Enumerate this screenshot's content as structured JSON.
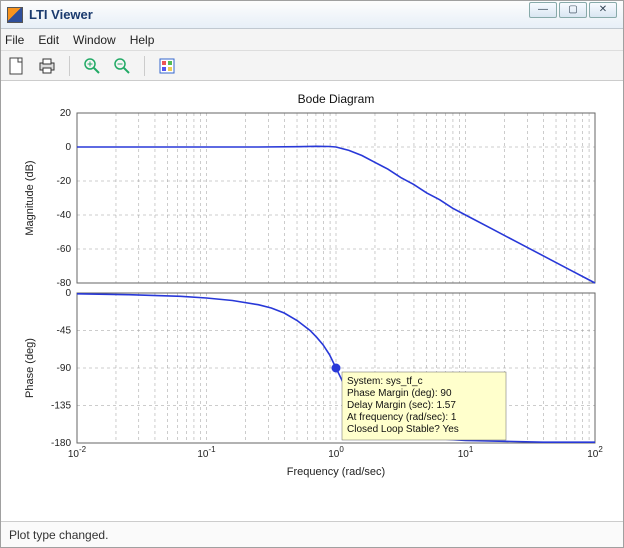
{
  "window": {
    "title": "LTI Viewer"
  },
  "menubar": {
    "items": [
      "File",
      "Edit",
      "Window",
      "Help"
    ]
  },
  "toolbar": {
    "icons": [
      {
        "name": "new-figure-icon",
        "glyph": "file"
      },
      {
        "name": "print-icon",
        "glyph": "print"
      },
      {
        "name": "zoom-in-icon",
        "glyph": "zoom-in"
      },
      {
        "name": "zoom-out-icon",
        "glyph": "zoom-out"
      },
      {
        "name": "properties-icon",
        "glyph": "props"
      }
    ]
  },
  "chart": {
    "title": "Bode Diagram",
    "xlabel": "Frequency  (rad/sec)",
    "xaxis": {
      "scale": "log",
      "lim_exp": [
        -2,
        2
      ],
      "tick_exps": [
        -2,
        -1,
        0,
        1,
        2
      ],
      "tick_labels": [
        "10^{-2}",
        "10^{-1}",
        "10^{0}",
        "10^{1}",
        "10^{2}"
      ]
    },
    "panels": {
      "mag": {
        "ylabel": "Magnitude (dB)",
        "ylim": [
          -80,
          20
        ],
        "yticks": [
          -80,
          -60,
          -40,
          -20,
          0,
          20
        ],
        "line_color": "#2838d8",
        "series_logfreq_db": [
          [
            -2.0,
            0
          ],
          [
            -1.5,
            0
          ],
          [
            -1.0,
            0
          ],
          [
            -0.6,
            0
          ],
          [
            -0.3,
            0.2
          ],
          [
            -0.15,
            0.4
          ],
          [
            -0.05,
            0.3
          ],
          [
            0.0,
            0
          ],
          [
            0.1,
            -2
          ],
          [
            0.2,
            -5
          ],
          [
            0.3,
            -9
          ],
          [
            0.4,
            -13
          ],
          [
            0.5,
            -18
          ],
          [
            0.6,
            -22
          ],
          [
            0.7,
            -27
          ],
          [
            0.8,
            -31
          ],
          [
            0.9,
            -36
          ],
          [
            1.0,
            -40
          ],
          [
            1.2,
            -48
          ],
          [
            1.4,
            -56
          ],
          [
            1.6,
            -64
          ],
          [
            1.8,
            -72
          ],
          [
            2.0,
            -80
          ]
        ]
      },
      "phase": {
        "ylabel": "Phase (deg)",
        "ylim": [
          -180,
          0
        ],
        "yticks": [
          -180,
          -135,
          -90,
          -45,
          0
        ],
        "line_color": "#2838d8",
        "series_logfreq_deg": [
          [
            -2.0,
            -1
          ],
          [
            -1.6,
            -2
          ],
          [
            -1.2,
            -4
          ],
          [
            -1.0,
            -6
          ],
          [
            -0.8,
            -9
          ],
          [
            -0.6,
            -14
          ],
          [
            -0.5,
            -18
          ],
          [
            -0.4,
            -24
          ],
          [
            -0.3,
            -33
          ],
          [
            -0.2,
            -45
          ],
          [
            -0.15,
            -53
          ],
          [
            -0.1,
            -62
          ],
          [
            -0.05,
            -74
          ],
          [
            0.0,
            -90
          ],
          [
            0.05,
            -106
          ],
          [
            0.1,
            -118
          ],
          [
            0.15,
            -128
          ],
          [
            0.2,
            -137
          ],
          [
            0.3,
            -150
          ],
          [
            0.4,
            -160
          ],
          [
            0.5,
            -166
          ],
          [
            0.6,
            -170
          ],
          [
            0.8,
            -175
          ],
          [
            1.0,
            -177
          ],
          [
            1.3,
            -178
          ],
          [
            1.6,
            -179
          ],
          [
            2.0,
            -179
          ]
        ],
        "marker": {
          "logfreq": 0.0,
          "deg": -90
        },
        "datatip": {
          "lines": [
            "System: sys_tf_c",
            "Phase Margin (deg): 90",
            "Delay Margin (sec): 1.57",
            "At frequency (rad/sec): 1",
            "Closed Loop Stable? Yes"
          ],
          "bg": "#ffffcc",
          "border": "#666666"
        }
      }
    },
    "grid_color": "#999999",
    "frame_color": "#666666",
    "background": "#ffffff"
  },
  "statusbar": {
    "text": "Plot type changed."
  },
  "colors": {
    "titlebar_text": "#1a3a6e"
  }
}
